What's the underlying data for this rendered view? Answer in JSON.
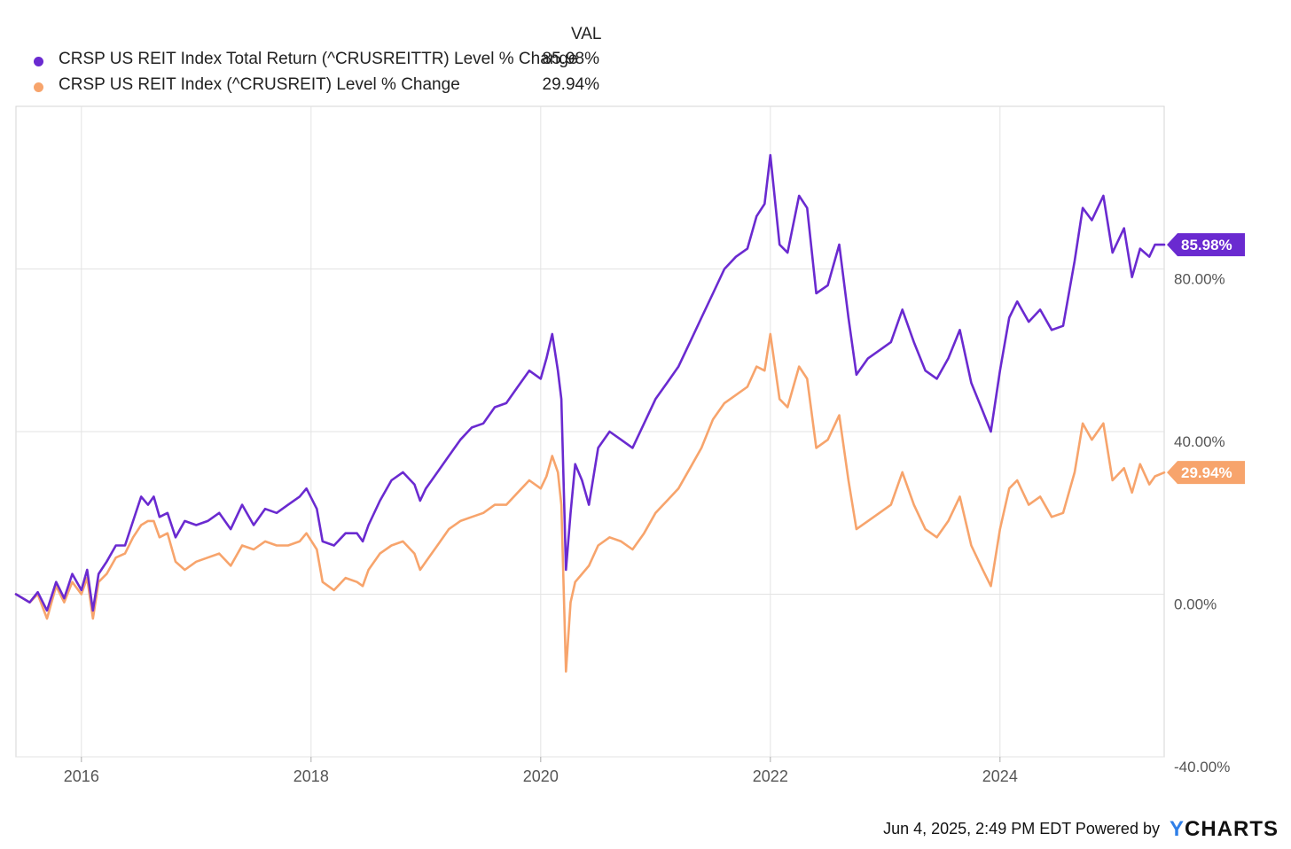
{
  "legend": {
    "header": "VAL",
    "items": [
      {
        "name": "CRSP US REIT Index Total Return (^CRUSREITTR) Level % Change",
        "value": "85.98%",
        "color": "#6a2ad0"
      },
      {
        "name": "CRSP US REIT Index (^CRUSREIT) Level % Change",
        "value": "29.94%",
        "color": "#f7a46c"
      }
    ]
  },
  "footer": {
    "timestamp": "Jun 4, 2025, 2:49 PM EDT",
    "powered_by": "Powered by",
    "brand_y": "Y",
    "brand_rest": "CHARTS"
  },
  "chart_data": {
    "type": "line",
    "xlim": [
      2015.43,
      2025.43
    ],
    "ylim": [
      -40,
      120
    ],
    "x_ticks": [
      2016,
      2018,
      2020,
      2022,
      2024
    ],
    "x_tick_labels": [
      "2016",
      "2018",
      "2020",
      "2022",
      "2024"
    ],
    "y_ticks": [
      -40,
      0,
      40,
      80
    ],
    "y_tick_labels": [
      "-40.00%",
      "0.00%",
      "40.00%",
      "80.00%"
    ],
    "grid": true,
    "legend_position": "top-left",
    "series": [
      {
        "name": "CRSP US REIT Index Total Return (^CRUSREITTR) Level % Change",
        "color": "#6a2ad0",
        "end_label": "85.98%",
        "points": [
          [
            2015.43,
            0
          ],
          [
            2015.55,
            -2
          ],
          [
            2015.62,
            0.5
          ],
          [
            2015.7,
            -4
          ],
          [
            2015.78,
            3
          ],
          [
            2015.85,
            -1
          ],
          [
            2015.92,
            5
          ],
          [
            2016.0,
            1
          ],
          [
            2016.05,
            6
          ],
          [
            2016.1,
            -4
          ],
          [
            2016.15,
            5
          ],
          [
            2016.22,
            8
          ],
          [
            2016.3,
            12
          ],
          [
            2016.38,
            12
          ],
          [
            2016.45,
            18
          ],
          [
            2016.52,
            24
          ],
          [
            2016.58,
            22
          ],
          [
            2016.63,
            24
          ],
          [
            2016.68,
            19
          ],
          [
            2016.75,
            20
          ],
          [
            2016.82,
            14
          ],
          [
            2016.9,
            18
          ],
          [
            2017.0,
            17
          ],
          [
            2017.1,
            18
          ],
          [
            2017.2,
            20
          ],
          [
            2017.3,
            16
          ],
          [
            2017.4,
            22
          ],
          [
            2017.5,
            17
          ],
          [
            2017.6,
            21
          ],
          [
            2017.7,
            20
          ],
          [
            2017.8,
            22
          ],
          [
            2017.9,
            24
          ],
          [
            2017.96,
            26
          ],
          [
            2018.05,
            21
          ],
          [
            2018.1,
            13
          ],
          [
            2018.2,
            12
          ],
          [
            2018.3,
            15
          ],
          [
            2018.4,
            15
          ],
          [
            2018.45,
            13
          ],
          [
            2018.5,
            17
          ],
          [
            2018.6,
            23
          ],
          [
            2018.7,
            28
          ],
          [
            2018.8,
            30
          ],
          [
            2018.9,
            27
          ],
          [
            2018.95,
            23
          ],
          [
            2019.0,
            26
          ],
          [
            2019.1,
            30
          ],
          [
            2019.2,
            34
          ],
          [
            2019.3,
            38
          ],
          [
            2019.4,
            41
          ],
          [
            2019.5,
            42
          ],
          [
            2019.6,
            46
          ],
          [
            2019.7,
            47
          ],
          [
            2019.8,
            51
          ],
          [
            2019.9,
            55
          ],
          [
            2020.0,
            53
          ],
          [
            2020.05,
            58
          ],
          [
            2020.1,
            64
          ],
          [
            2020.15,
            55
          ],
          [
            2020.18,
            48
          ],
          [
            2020.22,
            6
          ],
          [
            2020.26,
            20
          ],
          [
            2020.3,
            32
          ],
          [
            2020.36,
            28
          ],
          [
            2020.42,
            22
          ],
          [
            2020.5,
            36
          ],
          [
            2020.6,
            40
          ],
          [
            2020.7,
            38
          ],
          [
            2020.8,
            36
          ],
          [
            2020.9,
            42
          ],
          [
            2021.0,
            48
          ],
          [
            2021.1,
            52
          ],
          [
            2021.2,
            56
          ],
          [
            2021.3,
            62
          ],
          [
            2021.4,
            68
          ],
          [
            2021.5,
            74
          ],
          [
            2021.6,
            80
          ],
          [
            2021.7,
            83
          ],
          [
            2021.8,
            85
          ],
          [
            2021.88,
            93
          ],
          [
            2021.95,
            96
          ],
          [
            2022.0,
            108
          ],
          [
            2022.08,
            86
          ],
          [
            2022.15,
            84
          ],
          [
            2022.25,
            98
          ],
          [
            2022.32,
            95
          ],
          [
            2022.4,
            74
          ],
          [
            2022.5,
            76
          ],
          [
            2022.6,
            86
          ],
          [
            2022.68,
            68
          ],
          [
            2022.75,
            54
          ],
          [
            2022.85,
            58
          ],
          [
            2022.95,
            60
          ],
          [
            2023.05,
            62
          ],
          [
            2023.15,
            70
          ],
          [
            2023.25,
            62
          ],
          [
            2023.35,
            55
          ],
          [
            2023.45,
            53
          ],
          [
            2023.55,
            58
          ],
          [
            2023.65,
            65
          ],
          [
            2023.75,
            52
          ],
          [
            2023.85,
            45
          ],
          [
            2023.92,
            40
          ],
          [
            2024.0,
            55
          ],
          [
            2024.08,
            68
          ],
          [
            2024.15,
            72
          ],
          [
            2024.25,
            67
          ],
          [
            2024.35,
            70
          ],
          [
            2024.45,
            65
          ],
          [
            2024.55,
            66
          ],
          [
            2024.65,
            82
          ],
          [
            2024.72,
            95
          ],
          [
            2024.8,
            92
          ],
          [
            2024.9,
            98
          ],
          [
            2024.98,
            84
          ],
          [
            2025.08,
            90
          ],
          [
            2025.15,
            78
          ],
          [
            2025.22,
            85
          ],
          [
            2025.3,
            83
          ],
          [
            2025.35,
            86
          ],
          [
            2025.43,
            85.98
          ]
        ]
      },
      {
        "name": "CRSP US REIT Index (^CRUSREIT) Level % Change",
        "color": "#f7a46c",
        "end_label": "29.94%",
        "points": [
          [
            2015.43,
            0
          ],
          [
            2015.55,
            -2
          ],
          [
            2015.62,
            0
          ],
          [
            2015.7,
            -6
          ],
          [
            2015.78,
            2
          ],
          [
            2015.85,
            -2
          ],
          [
            2015.92,
            3
          ],
          [
            2016.0,
            0
          ],
          [
            2016.05,
            4
          ],
          [
            2016.1,
            -6
          ],
          [
            2016.15,
            3
          ],
          [
            2016.22,
            5
          ],
          [
            2016.3,
            9
          ],
          [
            2016.38,
            10
          ],
          [
            2016.45,
            14
          ],
          [
            2016.52,
            17
          ],
          [
            2016.58,
            18
          ],
          [
            2016.63,
            18
          ],
          [
            2016.68,
            14
          ],
          [
            2016.75,
            15
          ],
          [
            2016.82,
            8
          ],
          [
            2016.9,
            6
          ],
          [
            2017.0,
            8
          ],
          [
            2017.1,
            9
          ],
          [
            2017.2,
            10
          ],
          [
            2017.3,
            7
          ],
          [
            2017.4,
            12
          ],
          [
            2017.5,
            11
          ],
          [
            2017.6,
            13
          ],
          [
            2017.7,
            12
          ],
          [
            2017.8,
            12
          ],
          [
            2017.9,
            13
          ],
          [
            2017.96,
            15
          ],
          [
            2018.05,
            11
          ],
          [
            2018.1,
            3
          ],
          [
            2018.2,
            1
          ],
          [
            2018.3,
            4
          ],
          [
            2018.4,
            3
          ],
          [
            2018.45,
            2
          ],
          [
            2018.5,
            6
          ],
          [
            2018.6,
            10
          ],
          [
            2018.7,
            12
          ],
          [
            2018.8,
            13
          ],
          [
            2018.9,
            10
          ],
          [
            2018.95,
            6
          ],
          [
            2019.0,
            8
          ],
          [
            2019.1,
            12
          ],
          [
            2019.2,
            16
          ],
          [
            2019.3,
            18
          ],
          [
            2019.4,
            19
          ],
          [
            2019.5,
            20
          ],
          [
            2019.6,
            22
          ],
          [
            2019.7,
            22
          ],
          [
            2019.8,
            25
          ],
          [
            2019.9,
            28
          ],
          [
            2020.0,
            26
          ],
          [
            2020.05,
            29
          ],
          [
            2020.1,
            34
          ],
          [
            2020.15,
            30
          ],
          [
            2020.18,
            22
          ],
          [
            2020.22,
            -19
          ],
          [
            2020.26,
            -2
          ],
          [
            2020.3,
            3
          ],
          [
            2020.36,
            5
          ],
          [
            2020.42,
            7
          ],
          [
            2020.5,
            12
          ],
          [
            2020.6,
            14
          ],
          [
            2020.7,
            13
          ],
          [
            2020.8,
            11
          ],
          [
            2020.9,
            15
          ],
          [
            2021.0,
            20
          ],
          [
            2021.1,
            23
          ],
          [
            2021.2,
            26
          ],
          [
            2021.3,
            31
          ],
          [
            2021.4,
            36
          ],
          [
            2021.5,
            43
          ],
          [
            2021.6,
            47
          ],
          [
            2021.7,
            49
          ],
          [
            2021.8,
            51
          ],
          [
            2021.88,
            56
          ],
          [
            2021.95,
            55
          ],
          [
            2022.0,
            64
          ],
          [
            2022.08,
            48
          ],
          [
            2022.15,
            46
          ],
          [
            2022.25,
            56
          ],
          [
            2022.32,
            53
          ],
          [
            2022.4,
            36
          ],
          [
            2022.5,
            38
          ],
          [
            2022.6,
            44
          ],
          [
            2022.68,
            28
          ],
          [
            2022.75,
            16
          ],
          [
            2022.85,
            18
          ],
          [
            2022.95,
            20
          ],
          [
            2023.05,
            22
          ],
          [
            2023.15,
            30
          ],
          [
            2023.25,
            22
          ],
          [
            2023.35,
            16
          ],
          [
            2023.45,
            14
          ],
          [
            2023.55,
            18
          ],
          [
            2023.65,
            24
          ],
          [
            2023.75,
            12
          ],
          [
            2023.85,
            6
          ],
          [
            2023.92,
            2
          ],
          [
            2024.0,
            16
          ],
          [
            2024.08,
            26
          ],
          [
            2024.15,
            28
          ],
          [
            2024.25,
            22
          ],
          [
            2024.35,
            24
          ],
          [
            2024.45,
            19
          ],
          [
            2024.55,
            20
          ],
          [
            2024.65,
            30
          ],
          [
            2024.72,
            42
          ],
          [
            2024.8,
            38
          ],
          [
            2024.9,
            42
          ],
          [
            2024.98,
            28
          ],
          [
            2025.08,
            31
          ],
          [
            2025.15,
            25
          ],
          [
            2025.22,
            32
          ],
          [
            2025.3,
            27
          ],
          [
            2025.35,
            29
          ],
          [
            2025.43,
            29.94
          ]
        ]
      }
    ]
  }
}
